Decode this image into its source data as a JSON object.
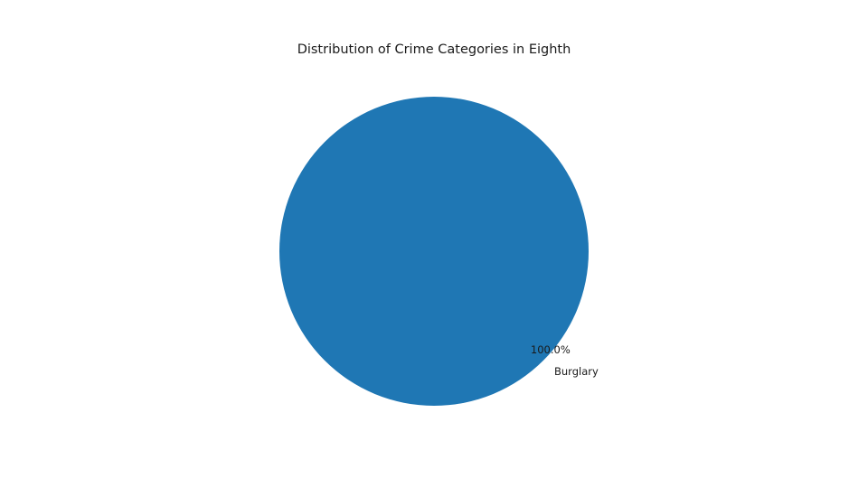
{
  "chart_data": {
    "type": "pie",
    "title": "Distribution of Crime Categories in Eighth",
    "labels": [
      "Burglary"
    ],
    "values": [
      100.0
    ],
    "percent_labels": [
      "100.0%"
    ],
    "colors": [
      "#1f77b4"
    ],
    "legend": "none"
  }
}
